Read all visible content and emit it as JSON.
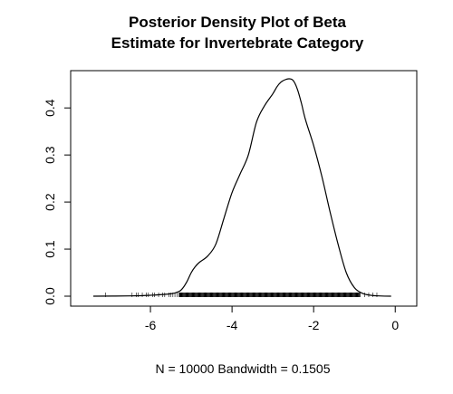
{
  "chart_data": {
    "type": "line",
    "title_lines": [
      "Posterior Density Plot of Beta",
      "Estimate for Invertebrate Category"
    ],
    "xlabel": "N = 10000   Bandwidth = 0.1505",
    "ylabel": "",
    "xlim": [
      -7.6,
      0.15
    ],
    "ylim": [
      0,
      0.46
    ],
    "x_ticks": [
      -6,
      -4,
      -2,
      0
    ],
    "x_tick_labels": [
      "-6",
      "-4",
      "-2",
      "0"
    ],
    "y_ticks": [
      0.0,
      0.1,
      0.2,
      0.3,
      0.4
    ],
    "y_tick_labels": [
      "0.0",
      "0.1",
      "0.2",
      "0.3",
      "0.4"
    ],
    "grid": false,
    "series": [
      {
        "x": [
          -7.4,
          -6.5,
          -6.0,
          -5.5,
          -5.3,
          -5.2,
          -5.1,
          -5.0,
          -4.9,
          -4.8,
          -4.6,
          -4.4,
          -4.2,
          -4.0,
          -3.8,
          -3.6,
          -3.4,
          -3.2,
          -3.0,
          -2.9,
          -2.8,
          -2.7,
          -2.6,
          -2.5,
          -2.4,
          -2.3,
          -2.2,
          -2.0,
          -1.8,
          -1.6,
          -1.4,
          -1.2,
          -1.0,
          -0.8,
          -0.6,
          -0.4,
          -0.1
        ],
        "y": [
          0.0,
          0.0005,
          0.002,
          0.005,
          0.01,
          0.018,
          0.032,
          0.05,
          0.063,
          0.072,
          0.085,
          0.11,
          0.165,
          0.22,
          0.26,
          0.3,
          0.37,
          0.405,
          0.43,
          0.445,
          0.455,
          0.46,
          0.462,
          0.458,
          0.44,
          0.41,
          0.375,
          0.32,
          0.255,
          0.18,
          0.11,
          0.05,
          0.018,
          0.006,
          0.002,
          0.0005,
          0.0
        ]
      }
    ],
    "rug": {
      "sparse": [
        -7.1,
        -6.45,
        -6.35,
        -6.3,
        -6.2,
        -6.1,
        -6.05,
        -5.95,
        -5.9,
        -5.8,
        -5.7,
        -5.65,
        -5.55,
        -5.5,
        -5.45,
        -5.4,
        -5.35,
        -0.75,
        -0.65,
        -0.55,
        -0.45
      ],
      "dense_range": [
        -5.3,
        -0.85
      ]
    }
  }
}
